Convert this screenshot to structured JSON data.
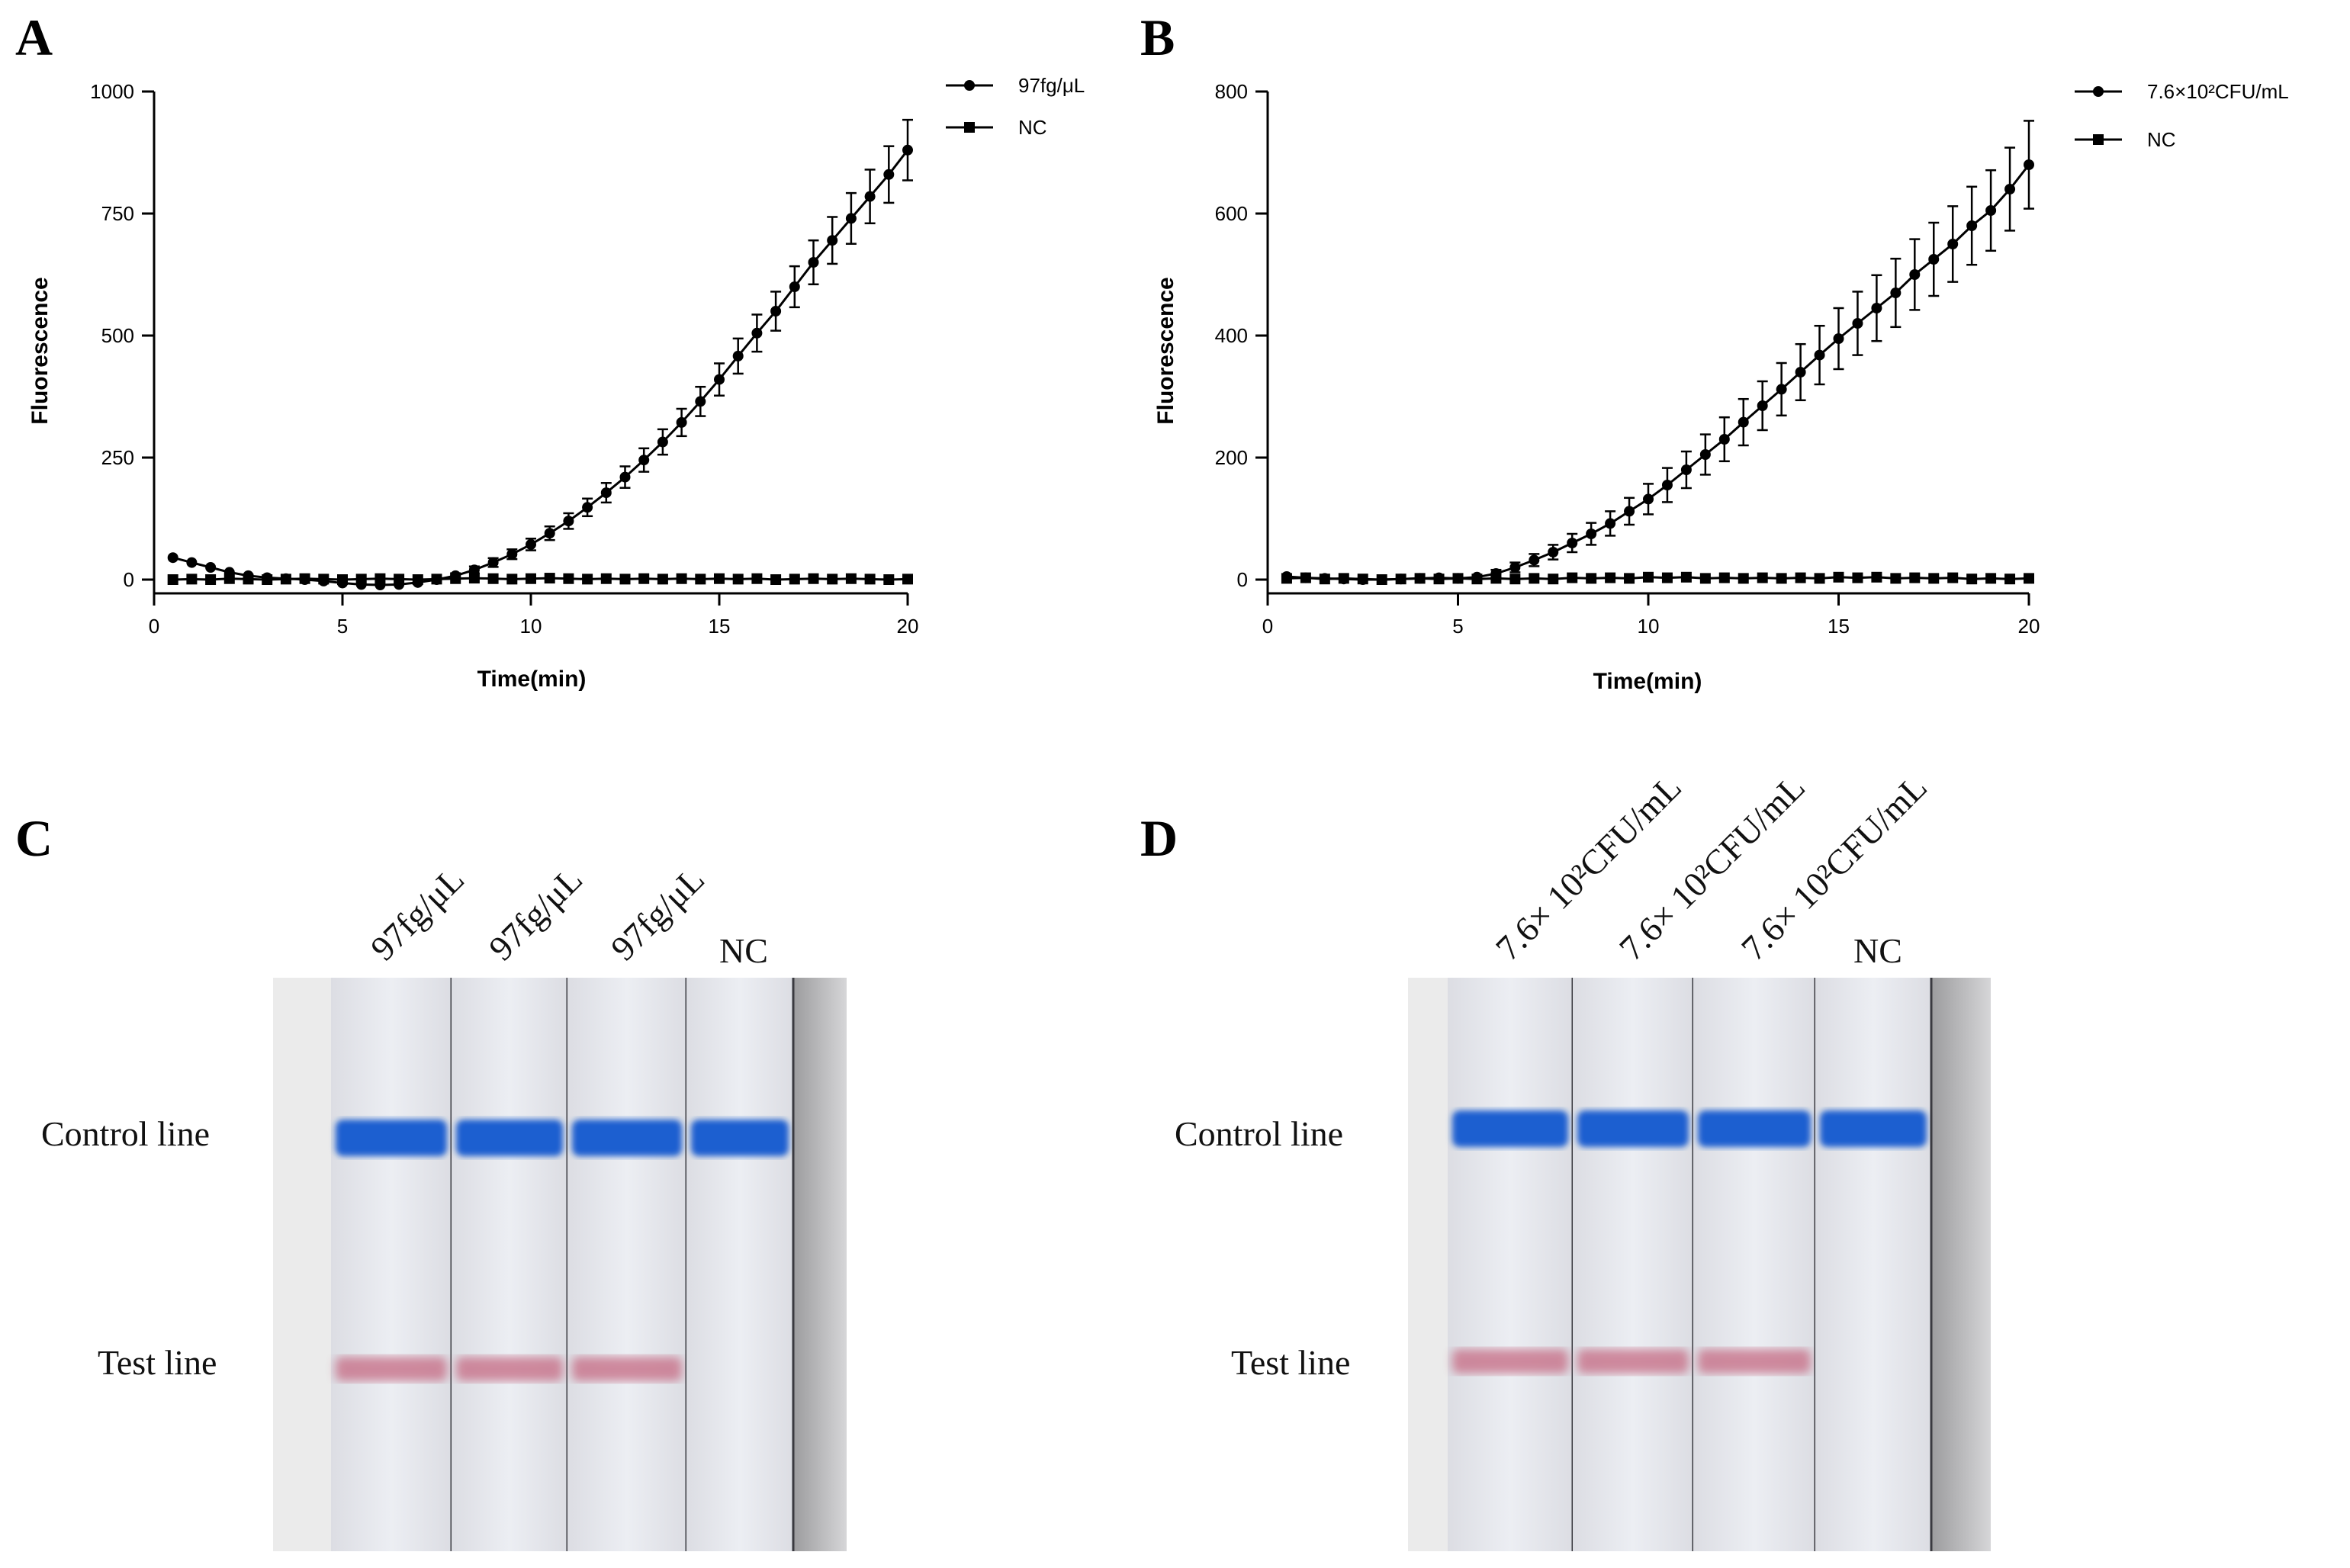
{
  "figure": {
    "panel_labels": [
      "A",
      "B",
      "C",
      "D"
    ]
  },
  "chart_data": [
    {
      "panel": "A",
      "type": "line",
      "title": "",
      "xlabel": "Time(min)",
      "ylabel": "Fluorescence",
      "xlim": [
        0,
        20
      ],
      "ylim": [
        -30,
        1000
      ],
      "xticks": [
        "0",
        "5",
        "10",
        "15",
        "20"
      ],
      "yticks": [
        "0",
        "250",
        "500",
        "750",
        "1000"
      ],
      "legend_position": "top-right",
      "series": [
        {
          "name": "97fg/μL",
          "marker": "circle",
          "x": [
            0.5,
            1.0,
            1.5,
            2.0,
            2.5,
            3.0,
            3.5,
            4.0,
            4.5,
            5.0,
            5.5,
            6.0,
            6.5,
            7.0,
            7.5,
            8.0,
            8.5,
            9.0,
            9.5,
            10.0,
            10.5,
            11.0,
            11.5,
            12.0,
            12.5,
            13.0,
            13.5,
            14.0,
            14.5,
            15.0,
            15.5,
            16.0,
            16.5,
            17.0,
            17.5,
            18.0,
            18.5,
            19.0,
            19.5,
            20.0
          ],
          "y": [
            45,
            35,
            25,
            15,
            8,
            4,
            2,
            0,
            -3,
            -7,
            -10,
            -11,
            -10,
            -6,
            0,
            8,
            20,
            35,
            52,
            72,
            95,
            120,
            148,
            178,
            210,
            245,
            282,
            322,
            365,
            410,
            458,
            505,
            550,
            600,
            650,
            695,
            740,
            785,
            830,
            880
          ],
          "error": [
            3,
            3,
            3,
            3,
            3,
            3,
            3,
            3,
            3,
            3,
            3,
            3,
            3,
            3,
            4,
            5,
            7,
            9,
            10,
            12,
            14,
            16,
            18,
            20,
            22,
            24,
            26,
            28,
            30,
            33,
            36,
            38,
            40,
            42,
            45,
            48,
            52,
            55,
            58,
            62
          ]
        },
        {
          "name": "NC",
          "marker": "square",
          "x": [
            0.5,
            1.0,
            1.5,
            2.0,
            2.5,
            3.0,
            3.5,
            4.0,
            4.5,
            5.0,
            5.5,
            6.0,
            6.5,
            7.0,
            7.5,
            8.0,
            8.5,
            9.0,
            9.5,
            10.0,
            10.5,
            11.0,
            11.5,
            12.0,
            12.5,
            13.0,
            13.5,
            14.0,
            14.5,
            15.0,
            15.5,
            16.0,
            16.5,
            17.0,
            17.5,
            18.0,
            18.5,
            19.0,
            19.5,
            20.0
          ],
          "y": [
            0,
            1,
            0,
            2,
            1,
            0,
            1,
            2,
            1,
            0,
            1,
            2,
            1,
            0,
            1,
            2,
            3,
            2,
            1,
            2,
            3,
            2,
            1,
            2,
            1,
            2,
            1,
            2,
            1,
            2,
            1,
            2,
            0,
            1,
            2,
            1,
            2,
            1,
            0,
            1
          ],
          "error": [
            2,
            2,
            2,
            2,
            2,
            2,
            2,
            2,
            2,
            2,
            2,
            2,
            2,
            2,
            2,
            2,
            2,
            2,
            2,
            2,
            2,
            2,
            2,
            2,
            2,
            2,
            2,
            2,
            2,
            2,
            2,
            2,
            2,
            2,
            2,
            2,
            2,
            2,
            2,
            2
          ]
        }
      ]
    },
    {
      "panel": "B",
      "type": "line",
      "title": "",
      "xlabel": "Time(min)",
      "ylabel": "Fluorescence",
      "xlim": [
        0,
        20
      ],
      "ylim": [
        -25,
        800
      ],
      "xticks": [
        "0",
        "5",
        "10",
        "15",
        "20"
      ],
      "yticks": [
        "0",
        "200",
        "400",
        "600",
        "800"
      ],
      "legend_position": "top-right",
      "series": [
        {
          "name": "7.6×10²CFU/mL",
          "marker": "circle",
          "x": [
            0.5,
            1.0,
            1.5,
            2.0,
            2.5,
            3.0,
            3.5,
            4.0,
            4.5,
            5.0,
            5.5,
            6.0,
            6.5,
            7.0,
            7.5,
            8.0,
            8.5,
            9.0,
            9.5,
            10.0,
            10.5,
            11.0,
            11.5,
            12.0,
            12.5,
            13.0,
            13.5,
            14.0,
            14.5,
            15.0,
            15.5,
            16.0,
            16.5,
            17.0,
            17.5,
            18.0,
            18.5,
            19.0,
            19.5,
            20.0
          ],
          "y": [
            5,
            3,
            2,
            1,
            0,
            0,
            1,
            2,
            3,
            2,
            4,
            10,
            20,
            32,
            45,
            60,
            75,
            92,
            112,
            132,
            155,
            180,
            205,
            230,
            258,
            285,
            312,
            340,
            368,
            395,
            420,
            445,
            470,
            500,
            525,
            550,
            580,
            605,
            640,
            680
          ],
          "error": [
            3,
            3,
            3,
            3,
            3,
            3,
            3,
            3,
            3,
            3,
            4,
            6,
            8,
            10,
            12,
            15,
            18,
            20,
            22,
            25,
            28,
            30,
            33,
            36,
            38,
            40,
            43,
            46,
            48,
            50,
            52,
            54,
            56,
            58,
            60,
            62,
            64,
            66,
            68,
            72
          ]
        },
        {
          "name": "NC",
          "marker": "square",
          "x": [
            0.5,
            1.0,
            1.5,
            2.0,
            2.5,
            3.0,
            3.5,
            4.0,
            4.5,
            5.0,
            5.5,
            6.0,
            6.5,
            7.0,
            7.5,
            8.0,
            8.5,
            9.0,
            9.5,
            10.0,
            10.5,
            11.0,
            11.5,
            12.0,
            12.5,
            13.0,
            13.5,
            14.0,
            14.5,
            15.0,
            15.5,
            16.0,
            16.5,
            17.0,
            17.5,
            18.0,
            18.5,
            19.0,
            19.5,
            20.0
          ],
          "y": [
            2,
            3,
            1,
            2,
            1,
            0,
            1,
            2,
            1,
            2,
            1,
            2,
            1,
            2,
            1,
            3,
            2,
            3,
            2,
            4,
            3,
            4,
            2,
            3,
            2,
            3,
            2,
            3,
            2,
            4,
            3,
            4,
            2,
            3,
            2,
            3,
            1,
            2,
            1,
            2
          ],
          "error": [
            3,
            3,
            3,
            3,
            3,
            3,
            3,
            3,
            3,
            3,
            3,
            3,
            3,
            3,
            3,
            3,
            3,
            3,
            3,
            3,
            3,
            3,
            3,
            3,
            3,
            3,
            3,
            3,
            3,
            3,
            3,
            3,
            3,
            3,
            3,
            3,
            3,
            3,
            3,
            3
          ]
        }
      ]
    }
  ],
  "strips": {
    "C": {
      "lane_labels": [
        "97fg/μL",
        "97fg/μL",
        "97fg/μL",
        "NC"
      ],
      "control_label": "Control line",
      "test_label": "Test line",
      "test_line_present": [
        true,
        true,
        true,
        false
      ]
    },
    "D": {
      "lane_labels": [
        "7.6× 10²CFU/mL",
        "7.6× 10²CFU/mL",
        "7.6× 10²CFU/mL",
        "NC"
      ],
      "control_label": "Control line",
      "test_label": "Test line",
      "test_line_present": [
        true,
        true,
        true,
        false
      ]
    }
  },
  "colors": {
    "control_line": "#1a5fd0",
    "test_line": "#c9788f",
    "strip_bg": "#e7e8ee",
    "line": "#000000"
  }
}
